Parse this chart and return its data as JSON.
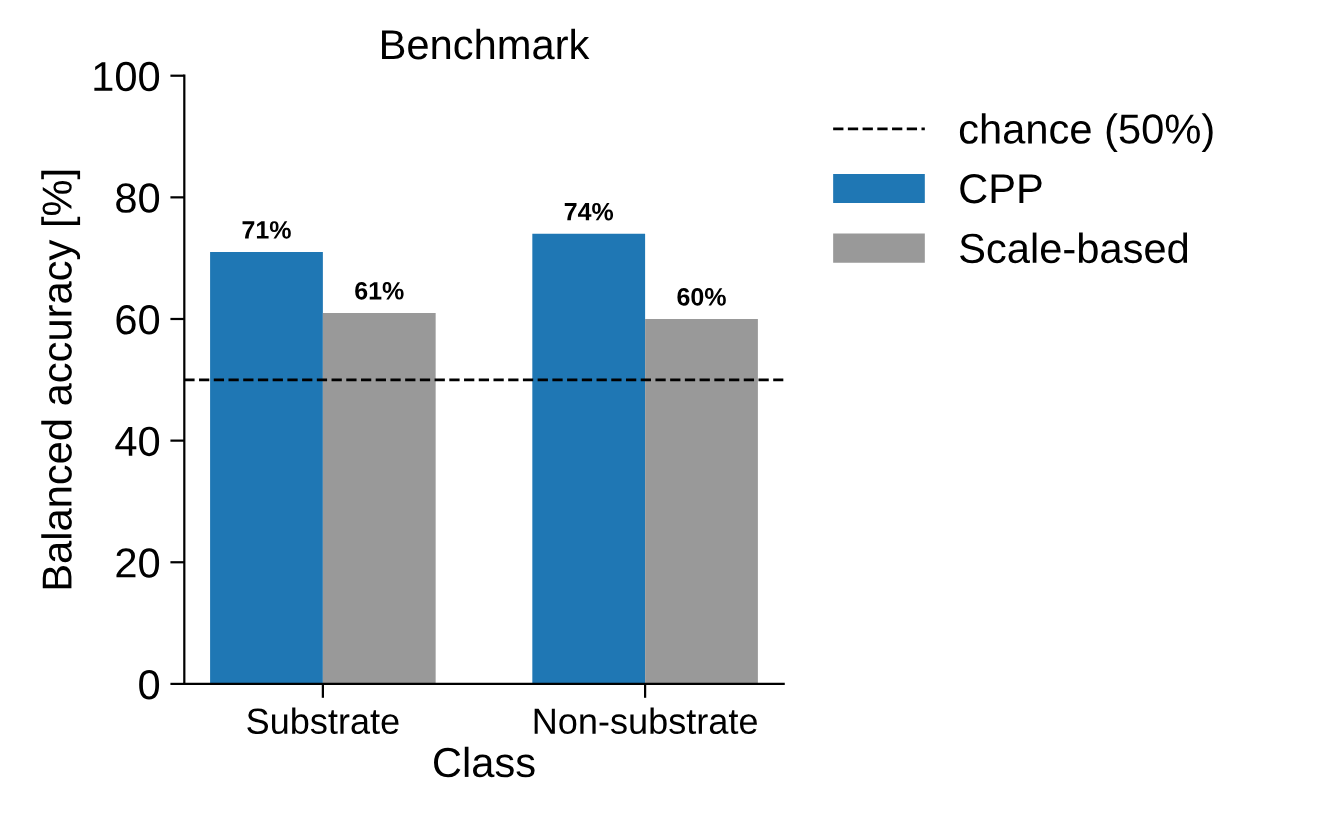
{
  "chart_data": {
    "type": "bar",
    "title": "Benchmark",
    "xlabel": "Class",
    "ylabel": "Balanced accuracy [%]",
    "categories": [
      "Substrate",
      "Non-substrate"
    ],
    "series": [
      {
        "name": "CPP",
        "color": "#1f77b4",
        "values": [
          71,
          74
        ],
        "value_labels": [
          "71%",
          "74%"
        ]
      },
      {
        "name": "Scale-based",
        "color": "#999999",
        "values": [
          61,
          60
        ],
        "value_labels": [
          "61%",
          "60%"
        ]
      }
    ],
    "ylim": [
      0,
      100
    ],
    "yticks": [
      0,
      20,
      40,
      60,
      80,
      100
    ],
    "ref_lines": [
      {
        "axis": "y",
        "value": 50,
        "label": "chance (50%)",
        "color": "#000000",
        "line_style": "dashed"
      }
    ],
    "grid": false,
    "legend": "right"
  }
}
